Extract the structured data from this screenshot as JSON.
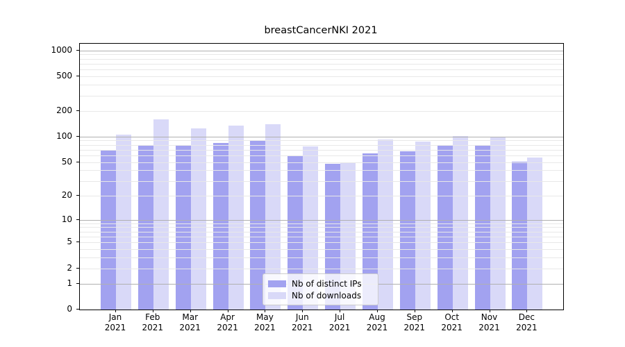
{
  "chart_data": {
    "type": "bar",
    "title": "breastCancerNKI 2021",
    "categories": [
      "Jan",
      "Feb",
      "Mar",
      "Apr",
      "May",
      "Jun",
      "Jul",
      "Aug",
      "Sep",
      "Oct",
      "Nov",
      "Dec"
    ],
    "category_year": "2021",
    "series": [
      {
        "name": "Nb of distinct IPs",
        "color": "#a2a2f0",
        "values": [
          70,
          78,
          79,
          84,
          91,
          60,
          48,
          63,
          67,
          78,
          79,
          51
        ]
      },
      {
        "name": "Nb of downloads",
        "color": "#d9d9f8",
        "values": [
          105,
          160,
          124,
          134,
          140,
          77,
          50,
          93,
          88,
          102,
          97,
          57
        ]
      }
    ],
    "yscale": "log10(1+x)",
    "yticks": [
      0,
      1,
      2,
      5,
      10,
      20,
      50,
      100,
      200,
      500,
      1000
    ],
    "grid": {
      "major": [
        1,
        10,
        100,
        1000
      ],
      "minor": [
        2,
        3,
        4,
        5,
        6,
        7,
        8,
        9,
        20,
        30,
        40,
        50,
        60,
        70,
        80,
        90,
        200,
        300,
        400,
        500,
        600,
        700,
        800,
        900
      ],
      "major_color": "#b0b0b0",
      "minor_color": "#e8e8e8"
    },
    "legend_position": "bottom-center",
    "axis_color": "#000000",
    "ylim_top_value": 1100
  }
}
